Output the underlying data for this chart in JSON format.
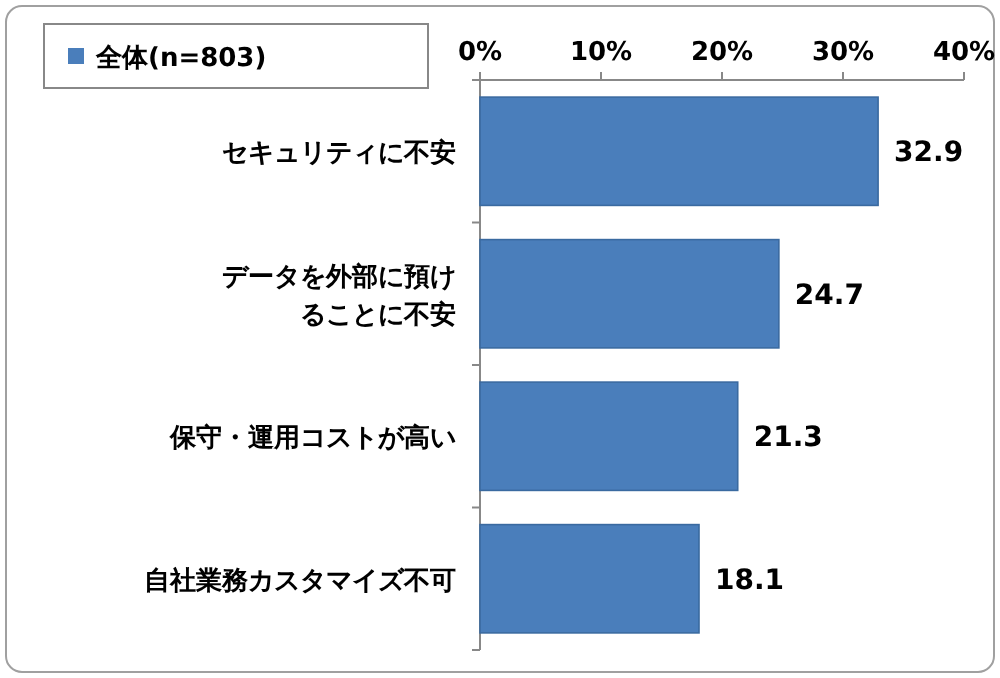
{
  "chart_data": {
    "type": "bar",
    "orientation": "horizontal",
    "categories": [
      "セキュリティに不安",
      "データを外部に預けることに不安",
      "保守・運用コストが高い",
      "自社業務カスタマイズ不可"
    ],
    "series": [
      {
        "name": "全体(n=803)",
        "color": "#4a7ebb",
        "values": [
          32.9,
          24.7,
          21.3,
          18.1
        ]
      }
    ],
    "xlim": [
      0,
      40
    ],
    "xticks": [
      {
        "value": 0,
        "label": "0%"
      },
      {
        "value": 10,
        "label": "10%"
      },
      {
        "value": 20,
        "label": "20%"
      },
      {
        "value": 30,
        "label": "30%"
      },
      {
        "value": 40,
        "label": "40%"
      }
    ],
    "data_labels": true,
    "legend": "top left"
  }
}
